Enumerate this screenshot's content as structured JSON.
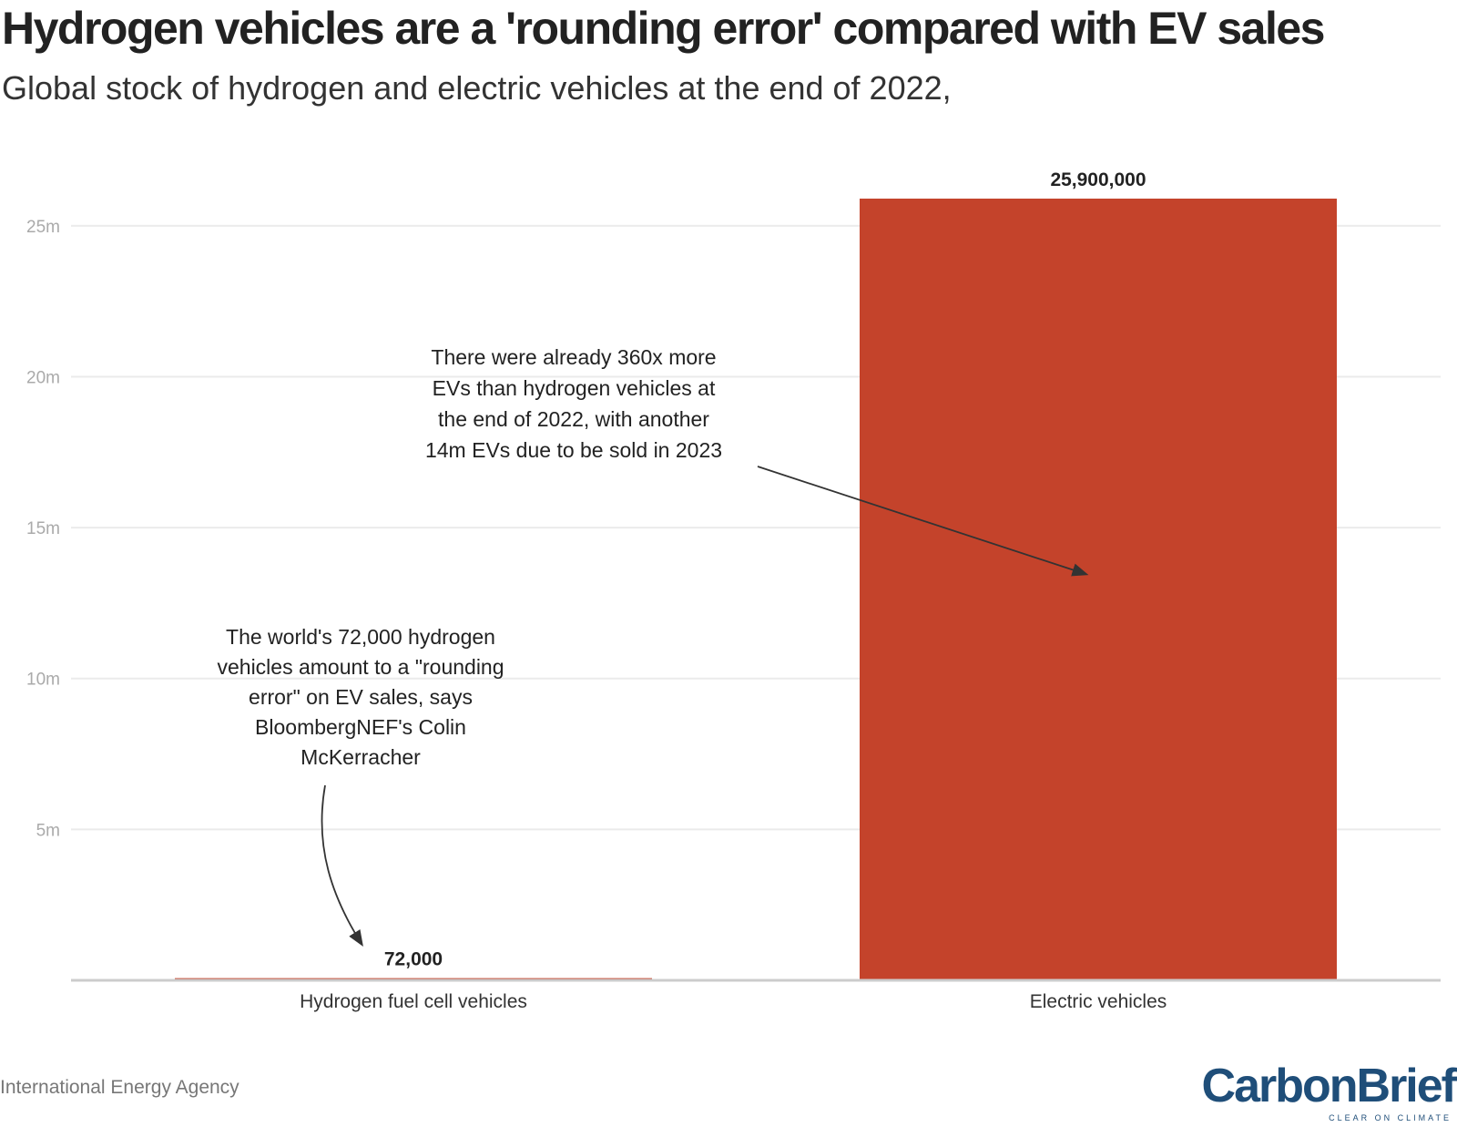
{
  "title": "Hydrogen vehicles are a 'rounding error' compared with EV sales",
  "subtitle": "Global stock of hydrogen and electric vehicles at the end of 2022,",
  "source": "International Energy Agency",
  "logo": {
    "text": "CarbonBrief",
    "tagline": "CLEAR ON CLIMATE"
  },
  "colors": {
    "bar": "#c4432b",
    "gridline": "#ebebeb",
    "axis": "#cccccc",
    "tick_label": "#aaaaaa",
    "brand": "#1f4e79"
  },
  "chart_data": {
    "type": "bar",
    "categories": [
      "Hydrogen fuel cell vehicles",
      "Electric vehicles"
    ],
    "values": [
      72000,
      25900000
    ],
    "value_labels": [
      "72,000",
      "25,900,000"
    ],
    "ylim": [
      0,
      25900000
    ],
    "yticks": [
      5000000,
      10000000,
      15000000,
      20000000,
      25000000
    ],
    "ytick_labels": [
      "5m",
      "10m",
      "15m",
      "20m",
      "25m"
    ],
    "grid": true,
    "xlabel": "",
    "ylabel": "",
    "annotations": [
      {
        "target_category": "Electric vehicles",
        "target_value": 13500000,
        "lines": [
          "There were already 360x more",
          "EVs than hydrogen vehicles at",
          "the end of 2022, with another",
          "14m EVs due to be sold in 2023"
        ]
      },
      {
        "target_category": "Hydrogen fuel cell vehicles",
        "target_value": 1200000,
        "lines": [
          "The world's 72,000 hydrogen",
          "vehicles amount to a \"rounding",
          "error\" on EV sales, says",
          "BloombergNEF's Colin",
          "McKerracher"
        ]
      }
    ]
  }
}
